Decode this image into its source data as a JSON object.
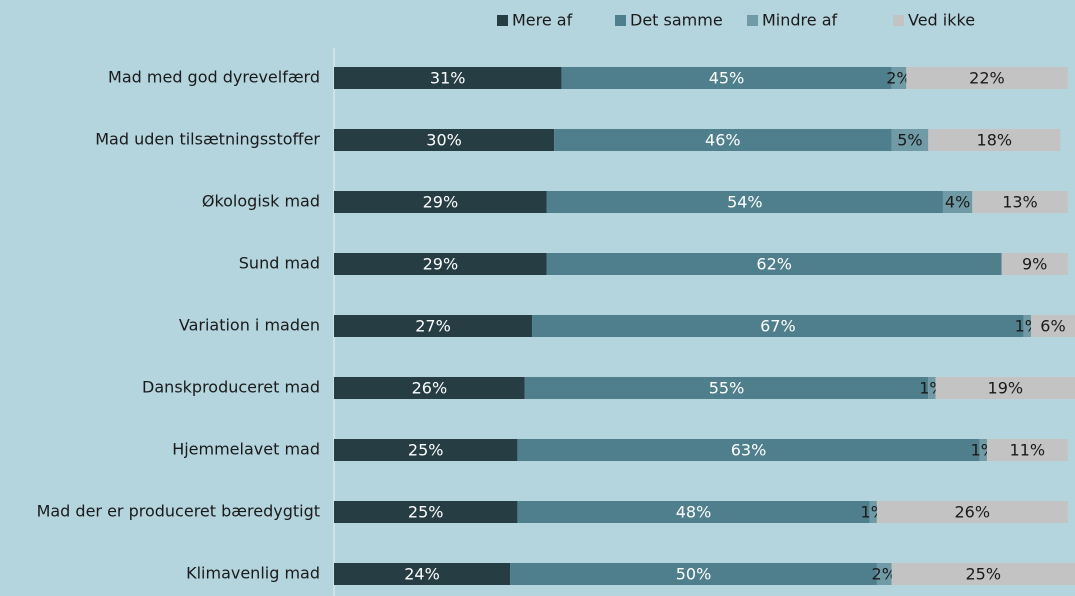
{
  "chart_data": {
    "type": "stacked-bar-horizontal",
    "categories": [
      "Mad med god dyrevelfærd",
      "Mad uden tilsætningsstoffer",
      "Økologisk mad",
      "Sund mad",
      "Variation i maden",
      "Danskproduceret mad",
      "Hjemmelavet mad",
      "Mad der er produceret bæredygtigt",
      "Klimavenlig mad"
    ],
    "series": [
      {
        "name": "Mere af",
        "color": "#263d44",
        "label_color": "#ffffff",
        "values": [
          31,
          30,
          29,
          29,
          27,
          26,
          25,
          25,
          24
        ],
        "value_labels": [
          "31%",
          "30%",
          "29%",
          "29%",
          "27%",
          "26%",
          "25%",
          "25%",
          "24%"
        ]
      },
      {
        "name": "Det samme",
        "color": "#4f7f8c",
        "label_color": "#ffffff",
        "values": [
          45,
          46,
          54,
          62,
          67,
          55,
          63,
          48,
          50
        ],
        "value_labels": [
          "45%",
          "46%",
          "54%",
          "62%",
          "67%",
          "55%",
          "63%",
          "48%",
          "50%"
        ]
      },
      {
        "name": "Mindre af",
        "color": "#6f9aa6",
        "label_color": "#1a1a1a",
        "values": [
          2,
          5,
          4,
          0,
          1,
          1,
          1,
          1,
          2
        ],
        "value_labels": [
          "2%",
          "5%",
          "4%",
          null,
          "1%",
          "1%",
          "1%",
          "1%",
          "2%"
        ]
      },
      {
        "name": "Ved ikke",
        "color": "#c3c3c3",
        "label_color": "#1a1a1a",
        "values": [
          22,
          18,
          13,
          9,
          6,
          19,
          11,
          26,
          25
        ],
        "value_labels": [
          "22%",
          "18%",
          "13%",
          "9%",
          "6%",
          "19%",
          "11%",
          "26%",
          "25%"
        ]
      }
    ],
    "legend": "top"
  }
}
